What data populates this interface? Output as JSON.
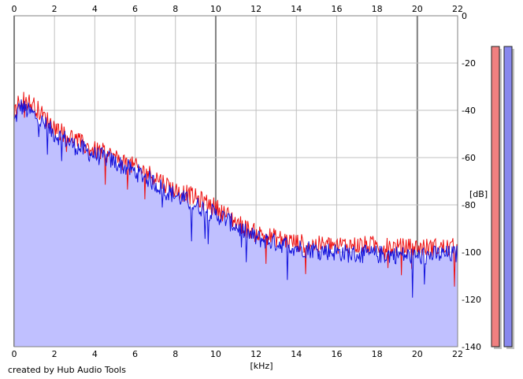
{
  "credit_text": "created by Hub Audio Tools",
  "colors": {
    "left_channel": "#ee1111",
    "right_channel": "#1111dd",
    "fill": "#c0c0ff",
    "grid": "#c0c0c0",
    "meter_left": "#f08080",
    "meter_right": "#8888ee"
  },
  "chart_data": {
    "type": "line",
    "xlabel": "[kHz]",
    "ylabel": "[dB]",
    "xlim": [
      0,
      22
    ],
    "ylim": [
      -140,
      0
    ],
    "x_ticks": [
      "0",
      "2",
      "4",
      "6",
      "8",
      "10",
      "12",
      "14",
      "16",
      "18",
      "20",
      "22"
    ],
    "y_ticks": [
      "0",
      "-20",
      "-40",
      "-60",
      "-80",
      "-100",
      "-120",
      "-140"
    ],
    "grid": true,
    "series": [
      {
        "channel": "left",
        "color": "#ee1111",
        "x": [
          0,
          0.3,
          0.6,
          1,
          1.5,
          2,
          2.5,
          3,
          3.5,
          4,
          4.5,
          5,
          5.5,
          6,
          6.5,
          7,
          7.5,
          8,
          8.5,
          9,
          9.5,
          10,
          10.5,
          11,
          11.5,
          12,
          12.5,
          13,
          13.5,
          14,
          15,
          16,
          17,
          18,
          19,
          20,
          21,
          22
        ],
        "values": [
          -42,
          -35,
          -36,
          -38,
          -43,
          -47,
          -50,
          -52,
          -55,
          -57,
          -58,
          -60,
          -62,
          -64,
          -66,
          -68,
          -71,
          -74,
          -75,
          -77,
          -79,
          -81,
          -84,
          -87,
          -90,
          -92,
          -93,
          -94,
          -95,
          -96,
          -97,
          -97,
          -97,
          -97,
          -98,
          -98,
          -98,
          -98
        ]
      },
      {
        "channel": "right",
        "color": "#1111dd",
        "x": [
          0,
          0.3,
          0.6,
          1,
          1.5,
          2,
          2.5,
          3,
          3.5,
          4,
          4.5,
          5,
          5.5,
          6,
          6.5,
          7,
          7.5,
          8,
          8.5,
          9,
          9.5,
          10,
          10.5,
          11,
          11.5,
          12,
          12.5,
          13,
          13.5,
          14,
          15,
          16,
          17,
          18,
          19,
          20,
          21,
          22
        ],
        "values": [
          -45,
          -38,
          -40,
          -42,
          -46,
          -50,
          -52,
          -55,
          -57,
          -59,
          -60,
          -62,
          -64,
          -66,
          -68,
          -71,
          -74,
          -76,
          -78,
          -80,
          -82,
          -84,
          -86,
          -89,
          -92,
          -94,
          -95,
          -96,
          -97,
          -98,
          -99,
          -100,
          -101,
          -101,
          -101,
          -102,
          -101,
          -101
        ]
      }
    ],
    "meters": {
      "range": [
        -140,
        0
      ],
      "left_level": -13,
      "right_level": -13
    }
  }
}
